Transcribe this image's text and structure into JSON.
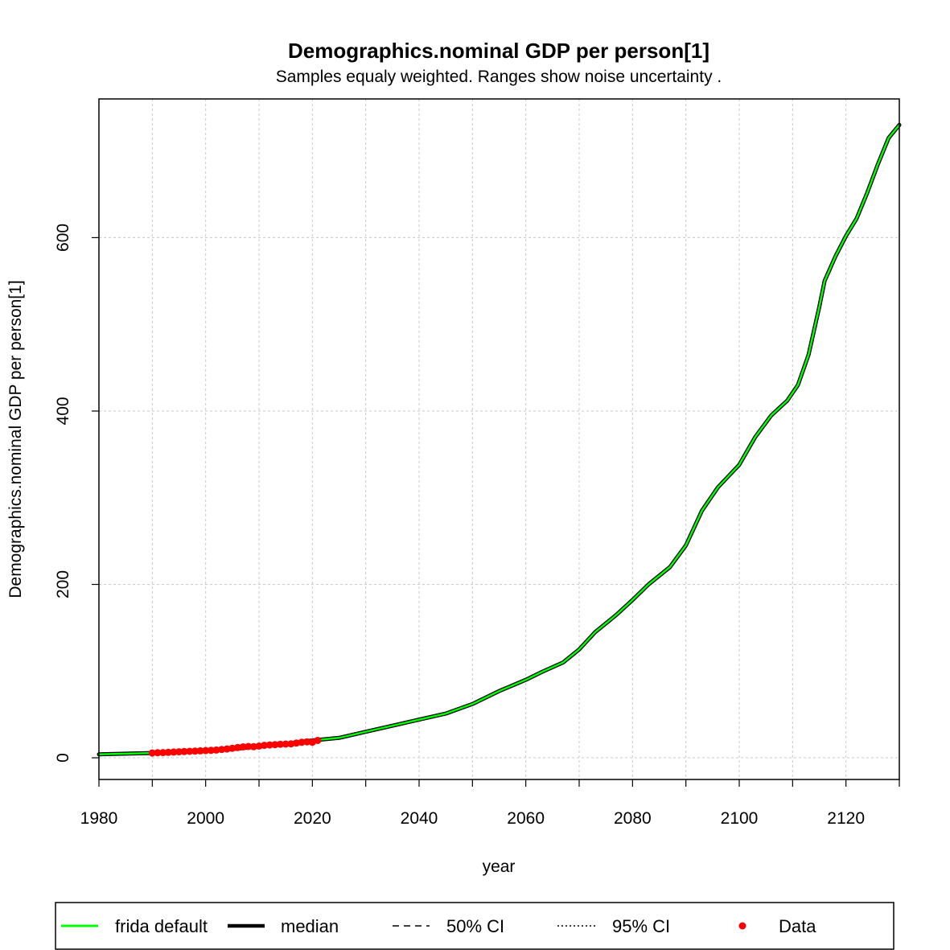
{
  "chart_data": {
    "type": "line",
    "title": "Demographics.nominal GDP per person[1]",
    "subtitle": "Samples equaly weighted. Ranges show  noise uncertainty .",
    "xlabel": "year",
    "ylabel": "Demographics.nominal GDP per person[1]",
    "xlim": [
      1980,
      2130
    ],
    "ylim": [
      -25,
      760
    ],
    "x_ticks": [
      1980,
      2000,
      2020,
      2040,
      2060,
      2080,
      2100,
      2120
    ],
    "x_minor_ticks": [
      1990,
      2010,
      2030,
      2050,
      2070,
      2090,
      2110,
      2130
    ],
    "y_ticks": [
      0,
      200,
      400,
      600
    ],
    "grid": true,
    "legend_placement": "bottom",
    "legend": [
      {
        "label": "frida default",
        "style": "solid-line",
        "color": "#00ff00"
      },
      {
        "label": "median",
        "style": "thick-line",
        "color": "#000000"
      },
      {
        "label": "50% CI",
        "style": "dashed-line",
        "color": "#000000"
      },
      {
        "label": "95% CI",
        "style": "dotted-line",
        "color": "#000000"
      },
      {
        "label": "Data",
        "style": "point",
        "color": "#ff0000"
      }
    ],
    "series": [
      {
        "name": "frida default",
        "color": "#00ff00",
        "x": [
          1980,
          1990,
          2000,
          2005,
          2010,
          2015,
          2020,
          2025,
          2030,
          2035,
          2040,
          2045,
          2050,
          2055,
          2060,
          2063,
          2067,
          2070,
          2073,
          2077,
          2080,
          2083,
          2087,
          2090,
          2093,
          2096,
          2100,
          2103,
          2106,
          2109,
          2111,
          2113,
          2115,
          2116,
          2118,
          2120,
          2122,
          2124,
          2126,
          2128,
          2130
        ],
        "y": [
          4,
          5.5,
          8,
          10,
          13,
          16,
          20,
          23,
          30,
          37,
          44,
          51,
          62,
          77,
          90,
          99,
          110,
          125,
          145,
          165,
          182,
          200,
          220,
          245,
          285,
          312,
          338,
          370,
          395,
          412,
          430,
          465,
          520,
          550,
          578,
          602,
          622,
          652,
          685,
          715,
          730
        ]
      },
      {
        "name": "median",
        "color": "#000000",
        "x": [
          1980,
          1990,
          2000,
          2005,
          2010,
          2015,
          2020,
          2025,
          2030,
          2035,
          2040,
          2045,
          2050,
          2055,
          2060,
          2063,
          2067,
          2070,
          2073,
          2077,
          2080,
          2083,
          2087,
          2090,
          2093,
          2096,
          2100,
          2103,
          2106,
          2109,
          2111,
          2113,
          2115,
          2116,
          2118,
          2120,
          2122,
          2124,
          2126,
          2128,
          2130
        ],
        "y": [
          4,
          5.5,
          8,
          10,
          13,
          16,
          20,
          23,
          30,
          37,
          44,
          51,
          62,
          77,
          90,
          99,
          110,
          125,
          145,
          165,
          182,
          200,
          220,
          245,
          285,
          312,
          338,
          370,
          395,
          412,
          430,
          465,
          520,
          550,
          578,
          602,
          622,
          652,
          685,
          715,
          730
        ]
      }
    ],
    "data_points": {
      "name": "Data",
      "color": "#ff0000",
      "x": [
        1990,
        1991,
        1992,
        1993,
        1994,
        1995,
        1996,
        1997,
        1998,
        1999,
        2000,
        2001,
        2002,
        2003,
        2004,
        2005,
        2006,
        2007,
        2008,
        2009,
        2010,
        2011,
        2012,
        2013,
        2014,
        2015,
        2016,
        2017,
        2018,
        2019,
        2020,
        2021
      ],
      "y": [
        5.5,
        5.8,
        6.0,
        6.3,
        6.6,
        6.9,
        7.2,
        7.5,
        7.8,
        8.0,
        8.3,
        8.6,
        9.0,
        9.6,
        10.2,
        11.0,
        11.8,
        12.6,
        13.0,
        12.8,
        13.5,
        14.3,
        14.8,
        15.2,
        15.6,
        15.8,
        16.1,
        17.0,
        17.9,
        18.4,
        18.0,
        20.0
      ]
    }
  }
}
